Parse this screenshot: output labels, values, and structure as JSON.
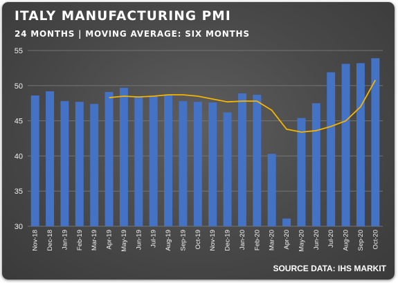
{
  "chart_data": {
    "type": "bar",
    "title": "ITALY MANUFACTURING PMI",
    "subtitle": "24 MONTHS | MOVING AVERAGE: SIX MONTHS",
    "source": "SOURCE DATA: IHS MARKIT",
    "categories": [
      "Nov-18",
      "Dec-18",
      "Jan-19",
      "Feb-19",
      "Mar-19",
      "Apr-19",
      "May-19",
      "Jun-19",
      "Jul-19",
      "Aug-19",
      "Sep-19",
      "Oct-19",
      "Nov-19",
      "Dec-19",
      "Jan-20",
      "Feb-20",
      "Mar-20",
      "Apr-20",
      "May-20",
      "Jun-20",
      "Jul-20",
      "Aug-20",
      "Sep-20",
      "Oct-20"
    ],
    "series": [
      {
        "type": "bar",
        "values": [
          48.6,
          49.2,
          47.8,
          47.7,
          47.4,
          49.1,
          49.7,
          48.4,
          48.5,
          48.7,
          47.8,
          47.7,
          47.6,
          46.2,
          48.9,
          48.7,
          40.3,
          31.1,
          45.4,
          47.5,
          51.9,
          53.1,
          53.2,
          53.9
        ],
        "color": "#4472c4"
      },
      {
        "type": "line",
        "values": [
          null,
          null,
          null,
          null,
          null,
          48.3,
          48.5,
          48.4,
          48.5,
          48.7,
          48.7,
          48.5,
          48.1,
          47.7,
          47.8,
          47.8,
          46.5,
          43.8,
          43.4,
          43.6,
          44.2,
          45.0,
          47.0,
          50.8
        ],
        "color": "#f4b400"
      }
    ],
    "ylim": [
      30,
      55
    ],
    "yticks": [
      30,
      35,
      40,
      45,
      50,
      55
    ],
    "grid": true,
    "legend": "none"
  }
}
